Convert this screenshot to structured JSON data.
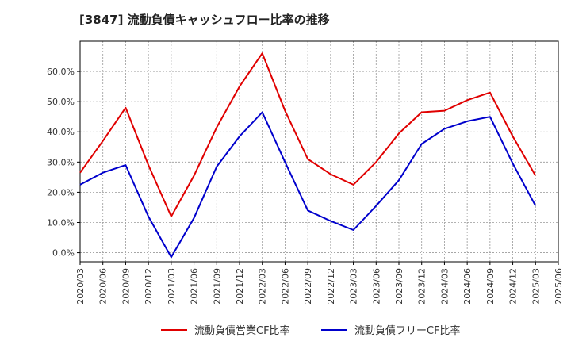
{
  "chart_data": {
    "type": "line",
    "title": "[3847]  流動負債キャッシュフロー比率の推移",
    "x": [
      "2020/03",
      "2020/06",
      "2020/09",
      "2020/12",
      "2021/03",
      "2021/06",
      "2021/09",
      "2021/12",
      "2022/03",
      "2022/06",
      "2022/09",
      "2022/12",
      "2023/03",
      "2023/06",
      "2023/09",
      "2023/12",
      "2024/03",
      "2024/06",
      "2024/09",
      "2024/12",
      "2025/03"
    ],
    "x_ticks": [
      "2020/03",
      "2020/06",
      "2020/09",
      "2020/12",
      "2021/03",
      "2021/06",
      "2021/09",
      "2021/12",
      "2022/03",
      "2022/06",
      "2022/09",
      "2022/12",
      "2023/03",
      "2023/06",
      "2023/09",
      "2023/12",
      "2024/03",
      "2024/06",
      "2024/09",
      "2024/12",
      "2025/03",
      "2025/06"
    ],
    "y_ticks": [
      "0.0%",
      "10.0%",
      "20.0%",
      "30.0%",
      "40.0%",
      "50.0%",
      "60.0%"
    ],
    "ylim": [
      -3,
      70
    ],
    "xlim": [
      "2020/03",
      "2025/06"
    ],
    "grid": true,
    "legend_position": "bottom",
    "series": [
      {
        "name": "流動負債営業CF比率",
        "color": "#e00000",
        "values": [
          26.5,
          37.0,
          48.0,
          29.0,
          12.0,
          25.5,
          41.5,
          55.0,
          66.0,
          47.0,
          31.0,
          26.0,
          22.5,
          30.0,
          39.5,
          46.5,
          47.0,
          50.5,
          53.0,
          38.5,
          25.5
        ]
      },
      {
        "name": "流動負債フリーCF比率",
        "color": "#0000cc",
        "values": [
          22.5,
          26.5,
          29.0,
          12.0,
          -1.5,
          11.5,
          28.5,
          38.5,
          46.5,
          30.0,
          14.0,
          10.5,
          7.5,
          15.5,
          24.0,
          36.0,
          41.0,
          43.5,
          45.0,
          29.5,
          15.5
        ]
      }
    ]
  }
}
